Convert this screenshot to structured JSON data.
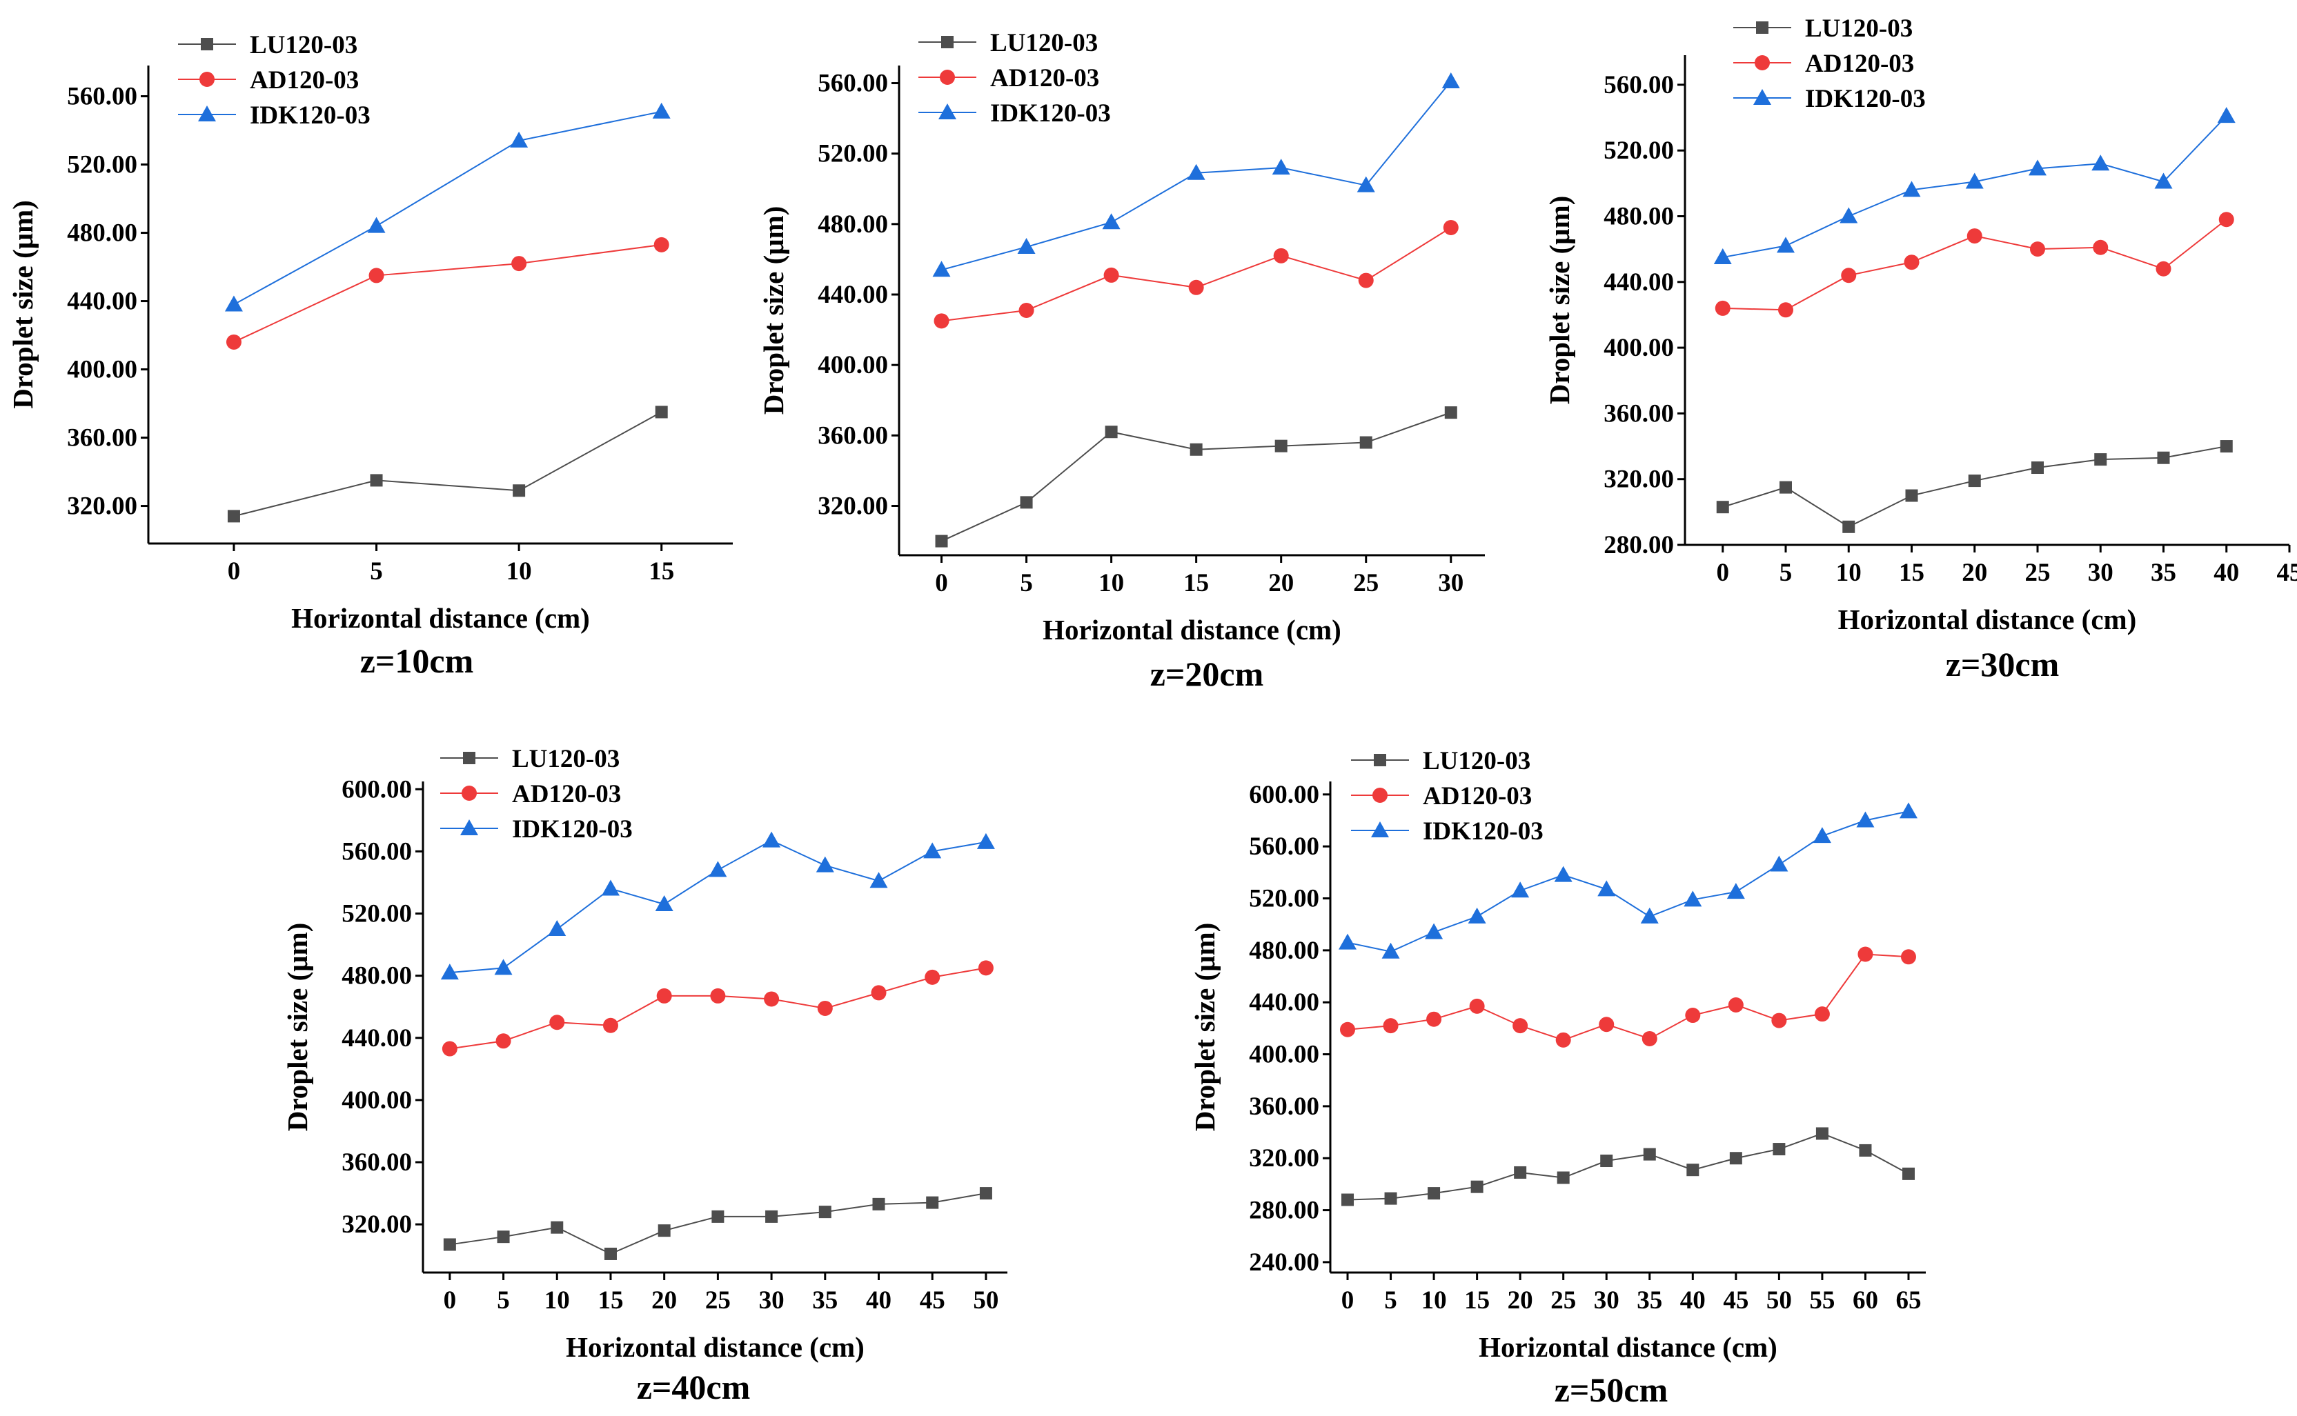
{
  "colors": {
    "LU120-03": "#4d4d4d",
    "AD120-03": "#ee3a3a",
    "IDK120-03": "#1e6fdb",
    "axis": "#000000"
  },
  "chart_data": [
    {
      "type": "line",
      "title": "z=10cm",
      "xlabel": "Horizontal distance (cm)",
      "ylabel": "Droplet size (μm)",
      "xlim": [
        -3,
        17.5
      ],
      "ylim": [
        298,
        578
      ],
      "xticks": [
        0,
        5,
        10,
        15
      ],
      "yticks": [
        "320.00",
        "360.00",
        "400.00",
        "440.00",
        "480.00",
        "520.00",
        "560.00"
      ],
      "legend_position": "top-left",
      "x": [
        0,
        5,
        10,
        15
      ],
      "series": [
        {
          "name": "LU120-03",
          "marker": "square",
          "values": [
            314,
            335,
            329,
            375
          ]
        },
        {
          "name": "AD120-03",
          "marker": "circle",
          "values": [
            416,
            455,
            462,
            473
          ]
        },
        {
          "name": "IDK120-03",
          "marker": "triangle",
          "values": [
            438,
            484,
            534,
            551
          ]
        }
      ]
    },
    {
      "type": "line",
      "title": "z=20cm",
      "xlabel": "Horizontal distance (cm)",
      "ylabel": "Droplet size (μm)",
      "xlim": [
        -2.5,
        32
      ],
      "ylim": [
        292,
        570
      ],
      "xticks": [
        0,
        5,
        10,
        15,
        20,
        25,
        30
      ],
      "yticks": [
        "320.00",
        "360.00",
        "400.00",
        "440.00",
        "480.00",
        "520.00",
        "560.00"
      ],
      "legend_position": "top-left",
      "x": [
        0,
        5,
        10,
        15,
        20,
        25,
        30
      ],
      "series": [
        {
          "name": "LU120-03",
          "marker": "square",
          "values": [
            300,
            322,
            362,
            352,
            354,
            356,
            373
          ]
        },
        {
          "name": "AD120-03",
          "marker": "circle",
          "values": [
            425,
            431,
            451,
            444,
            462,
            448,
            478
          ]
        },
        {
          "name": "IDK120-03",
          "marker": "triangle",
          "values": [
            454,
            467,
            481,
            509,
            512,
            502,
            561
          ]
        }
      ]
    },
    {
      "type": "line",
      "title": "z=30cm",
      "xlabel": "Horizontal distance (cm)",
      "ylabel": "Droplet size (μm)",
      "xlim": [
        -3,
        45
      ],
      "ylim": [
        280,
        578
      ],
      "xticks": [
        0,
        5,
        10,
        15,
        20,
        25,
        30,
        35,
        40,
        45
      ],
      "yticks": [
        "280.00",
        "320.00",
        "360.00",
        "400.00",
        "440.00",
        "480.00",
        "520.00",
        "560.00"
      ],
      "legend_position": "top-left",
      "x": [
        0,
        5,
        10,
        15,
        20,
        25,
        30,
        35,
        40
      ],
      "series": [
        {
          "name": "LU120-03",
          "marker": "square",
          "values": [
            303,
            315,
            291,
            310,
            319,
            327,
            332,
            333,
            340
          ]
        },
        {
          "name": "AD120-03",
          "marker": "circle",
          "values": [
            424,
            423,
            444,
            452,
            468,
            460,
            461,
            448,
            478
          ]
        },
        {
          "name": "IDK120-03",
          "marker": "triangle",
          "values": [
            455,
            462,
            480,
            496,
            501,
            509,
            512,
            501,
            541
          ]
        }
      ]
    },
    {
      "type": "line",
      "title": "z=40cm",
      "xlabel": "Horizontal distance (cm)",
      "ylabel": "Droplet size (μm)",
      "xlim": [
        -2.5,
        52
      ],
      "ylim": [
        289,
        605
      ],
      "xticks": [
        0,
        5,
        10,
        15,
        20,
        25,
        30,
        35,
        40,
        45,
        50
      ],
      "yticks": [
        "320.00",
        "360.00",
        "400.00",
        "440.00",
        "480.00",
        "520.00",
        "560.00",
        "600.00"
      ],
      "legend_position": "top-left",
      "x": [
        0,
        5,
        10,
        15,
        20,
        25,
        30,
        35,
        40,
        45,
        50
      ],
      "series": [
        {
          "name": "LU120-03",
          "marker": "square",
          "values": [
            307,
            312,
            318,
            301,
            316,
            325,
            325,
            328,
            333,
            334,
            340
          ]
        },
        {
          "name": "AD120-03",
          "marker": "circle",
          "values": [
            433,
            438,
            450,
            448,
            467,
            467,
            465,
            459,
            469,
            479,
            485
          ]
        },
        {
          "name": "IDK120-03",
          "marker": "triangle",
          "values": [
            482,
            485,
            510,
            536,
            526,
            548,
            567,
            551,
            541,
            560,
            566
          ]
        }
      ]
    },
    {
      "type": "line",
      "title": "z=50cm",
      "xlabel": "Horizontal distance (cm)",
      "ylabel": "Droplet size (μm)",
      "xlim": [
        -2,
        67
      ],
      "ylim": [
        232,
        610
      ],
      "xticks": [
        0,
        5,
        10,
        15,
        20,
        25,
        30,
        35,
        40,
        45,
        50,
        55,
        60,
        65
      ],
      "yticks": [
        "240.00",
        "280.00",
        "320.00",
        "360.00",
        "400.00",
        "440.00",
        "480.00",
        "520.00",
        "560.00",
        "600.00"
      ],
      "legend_position": "top-left",
      "x": [
        0,
        5,
        10,
        15,
        20,
        25,
        30,
        35,
        40,
        45,
        50,
        55,
        60,
        65
      ],
      "series": [
        {
          "name": "LU120-03",
          "marker": "square",
          "values": [
            288,
            289,
            293,
            298,
            309,
            305,
            318,
            323,
            311,
            320,
            327,
            339,
            326,
            308
          ]
        },
        {
          "name": "AD120-03",
          "marker": "circle",
          "values": [
            419,
            422,
            427,
            437,
            422,
            411,
            423,
            412,
            430,
            438,
            426,
            431,
            477,
            475
          ]
        },
        {
          "name": "IDK120-03",
          "marker": "triangle",
          "values": [
            486,
            479,
            494,
            506,
            526,
            538,
            527,
            506,
            519,
            525,
            546,
            568,
            580,
            587
          ]
        }
      ]
    }
  ]
}
